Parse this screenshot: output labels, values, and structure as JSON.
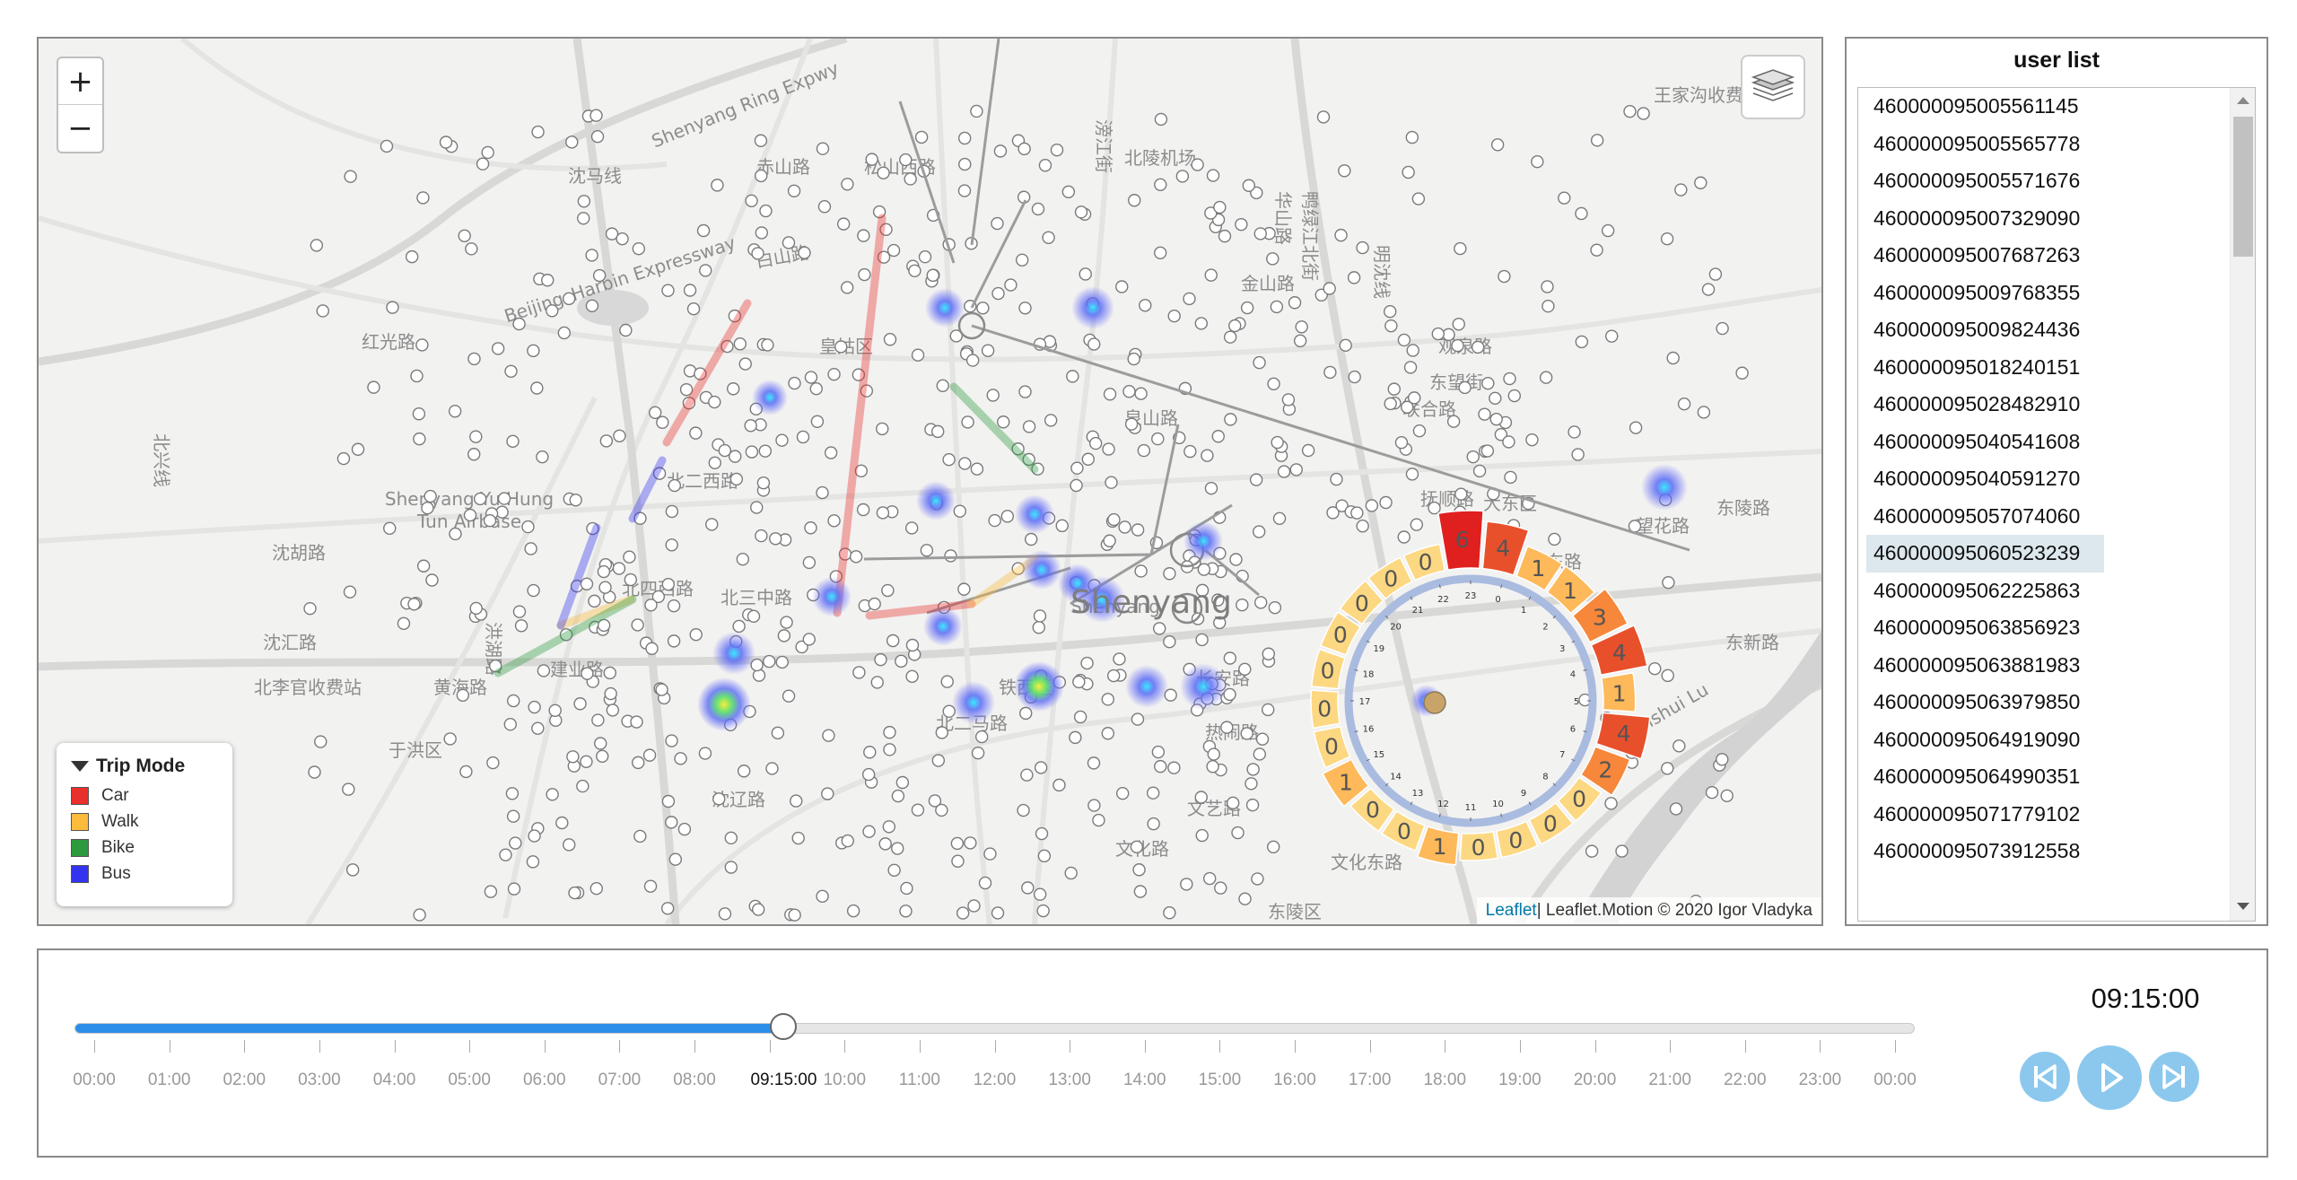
{
  "map": {
    "zoom_in_label": "+",
    "zoom_out_label": "−",
    "layers_icon": "layers-icon",
    "attribution": {
      "leaflet": "Leaflet",
      "rest": " | Leaflet.Motion © 2020 Igor Vladyka"
    },
    "place_labels": [
      "Shenyang Ring Expwy",
      "Beijing–Harbin Expressway",
      "沈马线",
      "北陵机场",
      "王家沟收费站",
      "赤山路",
      "松山西路",
      "白山路",
      "金山路",
      "皇姑区",
      "红光路",
      "北兴线",
      "Shenyang Yu Hung",
      "Tun Airbase",
      "沈胡路",
      "北二西路",
      "北四西路",
      "北三中路",
      "洪湖路",
      "建业路",
      "沈汇路",
      "北李官收费站",
      "黄海路",
      "于洪区",
      "铁西区",
      "北二马路",
      "沈辽路",
      "Shenyang",
      "大东区",
      "东陵路",
      "东新路",
      "长安路",
      "大东路",
      "Shenshui Lu",
      "热闹路",
      "文艺路",
      "文化路",
      "文化东路",
      "东陵区",
      "望花路",
      "观泉路",
      "联合路",
      "东望街",
      "抚顺路",
      "滂江街",
      "华山路",
      "鸭绿江北街",
      "明沈线",
      "泉山路"
    ],
    "ring_label": "Shenyang"
  },
  "legend": {
    "title": "Trip Mode",
    "items": [
      {
        "label": "Car",
        "color": "#e8302c"
      },
      {
        "label": "Walk",
        "color": "#fbbb3b"
      },
      {
        "label": "Bike",
        "color": "#2e9a3e"
      },
      {
        "label": "Bus",
        "color": "#3434f0"
      }
    ]
  },
  "radial_clock": {
    "hour_counts": [
      4,
      1,
      1,
      3,
      4,
      1,
      4,
      2,
      0,
      0,
      0,
      0,
      1,
      0,
      0,
      1,
      0,
      0,
      0,
      0,
      0,
      0,
      0,
      6
    ],
    "hour_tick_labels": [
      "23",
      "0",
      "1",
      "2",
      "3",
      "4",
      "5",
      "6",
      "7",
      "8",
      "9",
      "10",
      "11",
      "12",
      "13",
      "14",
      "15",
      "16",
      "17",
      "18",
      "19",
      "20",
      "21",
      "22"
    ],
    "colors": {
      "zero": "#fdd882",
      "low": "#fdb95a",
      "mid": "#f7873a",
      "high": "#e8502c",
      "max": "#e0201f"
    }
  },
  "user_list": {
    "title": "user list",
    "selected_index": 12,
    "users": [
      "460000095005561145",
      "460000095005565778",
      "460000095005571676",
      "460000095007329090",
      "460000095007687263",
      "460000095009768355",
      "460000095009824436",
      "460000095018240151",
      "460000095028482910",
      "460000095040541608",
      "460000095040591270",
      "460000095057074060",
      "460000095060523239",
      "460000095062225863",
      "460000095063856923",
      "460000095063881983",
      "460000095063979850",
      "460000095064919090",
      "460000095064990351",
      "460000095071779102",
      "460000095073912558"
    ]
  },
  "timeline": {
    "current_time": "09:15:00",
    "progress_fraction": 0.3854,
    "ticks": [
      "00:00",
      "01:00",
      "02:00",
      "03:00",
      "04:00",
      "05:00",
      "06:00",
      "07:00",
      "08:00",
      "09:00",
      "10:00",
      "11:00",
      "12:00",
      "13:00",
      "14:00",
      "15:00",
      "16:00",
      "17:00",
      "18:00",
      "19:00",
      "20:00",
      "21:00",
      "22:00",
      "23:00",
      "00:00"
    ],
    "current_tick_label": "09:15:00",
    "controls": {
      "prev_icon": "step-backward-icon",
      "play_icon": "play-icon",
      "next_icon": "step-forward-icon"
    }
  }
}
